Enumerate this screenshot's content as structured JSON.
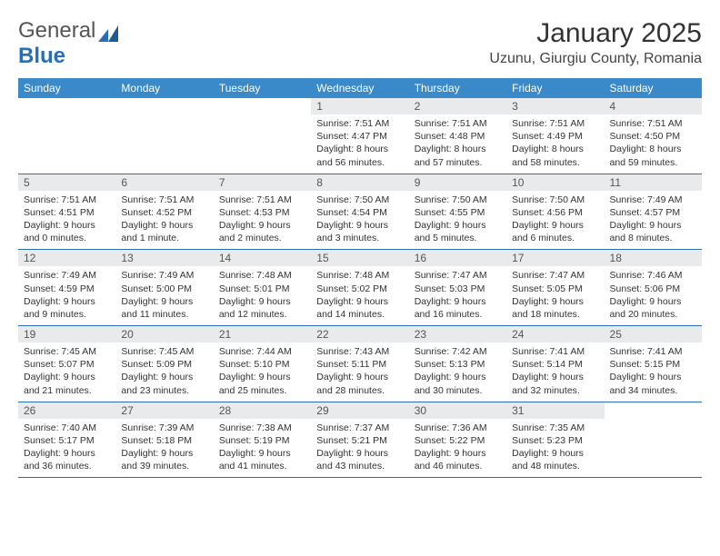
{
  "logo": {
    "text_general": "General",
    "text_blue": "Blue"
  },
  "header": {
    "month_title": "January 2025",
    "location": "Uzunu, Giurgiu County, Romania"
  },
  "colors": {
    "header_bar": "#3a89c9",
    "daynum_bg": "#e8eaec",
    "rule": "#2a6fb5",
    "text": "#333333",
    "logo_blue": "#2a6fb5"
  },
  "day_names": [
    "Sunday",
    "Monday",
    "Tuesday",
    "Wednesday",
    "Thursday",
    "Friday",
    "Saturday"
  ],
  "weeks": [
    [
      {
        "n": "",
        "lines": [
          "",
          "",
          "",
          ""
        ]
      },
      {
        "n": "",
        "lines": [
          "",
          "",
          "",
          ""
        ]
      },
      {
        "n": "",
        "lines": [
          "",
          "",
          "",
          ""
        ]
      },
      {
        "n": "1",
        "lines": [
          "Sunrise: 7:51 AM",
          "Sunset: 4:47 PM",
          "Daylight: 8 hours",
          "and 56 minutes."
        ]
      },
      {
        "n": "2",
        "lines": [
          "Sunrise: 7:51 AM",
          "Sunset: 4:48 PM",
          "Daylight: 8 hours",
          "and 57 minutes."
        ]
      },
      {
        "n": "3",
        "lines": [
          "Sunrise: 7:51 AM",
          "Sunset: 4:49 PM",
          "Daylight: 8 hours",
          "and 58 minutes."
        ]
      },
      {
        "n": "4",
        "lines": [
          "Sunrise: 7:51 AM",
          "Sunset: 4:50 PM",
          "Daylight: 8 hours",
          "and 59 minutes."
        ]
      }
    ],
    [
      {
        "n": "5",
        "lines": [
          "Sunrise: 7:51 AM",
          "Sunset: 4:51 PM",
          "Daylight: 9 hours",
          "and 0 minutes."
        ]
      },
      {
        "n": "6",
        "lines": [
          "Sunrise: 7:51 AM",
          "Sunset: 4:52 PM",
          "Daylight: 9 hours",
          "and 1 minute."
        ]
      },
      {
        "n": "7",
        "lines": [
          "Sunrise: 7:51 AM",
          "Sunset: 4:53 PM",
          "Daylight: 9 hours",
          "and 2 minutes."
        ]
      },
      {
        "n": "8",
        "lines": [
          "Sunrise: 7:50 AM",
          "Sunset: 4:54 PM",
          "Daylight: 9 hours",
          "and 3 minutes."
        ]
      },
      {
        "n": "9",
        "lines": [
          "Sunrise: 7:50 AM",
          "Sunset: 4:55 PM",
          "Daylight: 9 hours",
          "and 5 minutes."
        ]
      },
      {
        "n": "10",
        "lines": [
          "Sunrise: 7:50 AM",
          "Sunset: 4:56 PM",
          "Daylight: 9 hours",
          "and 6 minutes."
        ]
      },
      {
        "n": "11",
        "lines": [
          "Sunrise: 7:49 AM",
          "Sunset: 4:57 PM",
          "Daylight: 9 hours",
          "and 8 minutes."
        ]
      }
    ],
    [
      {
        "n": "12",
        "lines": [
          "Sunrise: 7:49 AM",
          "Sunset: 4:59 PM",
          "Daylight: 9 hours",
          "and 9 minutes."
        ]
      },
      {
        "n": "13",
        "lines": [
          "Sunrise: 7:49 AM",
          "Sunset: 5:00 PM",
          "Daylight: 9 hours",
          "and 11 minutes."
        ]
      },
      {
        "n": "14",
        "lines": [
          "Sunrise: 7:48 AM",
          "Sunset: 5:01 PM",
          "Daylight: 9 hours",
          "and 12 minutes."
        ]
      },
      {
        "n": "15",
        "lines": [
          "Sunrise: 7:48 AM",
          "Sunset: 5:02 PM",
          "Daylight: 9 hours",
          "and 14 minutes."
        ]
      },
      {
        "n": "16",
        "lines": [
          "Sunrise: 7:47 AM",
          "Sunset: 5:03 PM",
          "Daylight: 9 hours",
          "and 16 minutes."
        ]
      },
      {
        "n": "17",
        "lines": [
          "Sunrise: 7:47 AM",
          "Sunset: 5:05 PM",
          "Daylight: 9 hours",
          "and 18 minutes."
        ]
      },
      {
        "n": "18",
        "lines": [
          "Sunrise: 7:46 AM",
          "Sunset: 5:06 PM",
          "Daylight: 9 hours",
          "and 20 minutes."
        ]
      }
    ],
    [
      {
        "n": "19",
        "lines": [
          "Sunrise: 7:45 AM",
          "Sunset: 5:07 PM",
          "Daylight: 9 hours",
          "and 21 minutes."
        ]
      },
      {
        "n": "20",
        "lines": [
          "Sunrise: 7:45 AM",
          "Sunset: 5:09 PM",
          "Daylight: 9 hours",
          "and 23 minutes."
        ]
      },
      {
        "n": "21",
        "lines": [
          "Sunrise: 7:44 AM",
          "Sunset: 5:10 PM",
          "Daylight: 9 hours",
          "and 25 minutes."
        ]
      },
      {
        "n": "22",
        "lines": [
          "Sunrise: 7:43 AM",
          "Sunset: 5:11 PM",
          "Daylight: 9 hours",
          "and 28 minutes."
        ]
      },
      {
        "n": "23",
        "lines": [
          "Sunrise: 7:42 AM",
          "Sunset: 5:13 PM",
          "Daylight: 9 hours",
          "and 30 minutes."
        ]
      },
      {
        "n": "24",
        "lines": [
          "Sunrise: 7:41 AM",
          "Sunset: 5:14 PM",
          "Daylight: 9 hours",
          "and 32 minutes."
        ]
      },
      {
        "n": "25",
        "lines": [
          "Sunrise: 7:41 AM",
          "Sunset: 5:15 PM",
          "Daylight: 9 hours",
          "and 34 minutes."
        ]
      }
    ],
    [
      {
        "n": "26",
        "lines": [
          "Sunrise: 7:40 AM",
          "Sunset: 5:17 PM",
          "Daylight: 9 hours",
          "and 36 minutes."
        ]
      },
      {
        "n": "27",
        "lines": [
          "Sunrise: 7:39 AM",
          "Sunset: 5:18 PM",
          "Daylight: 9 hours",
          "and 39 minutes."
        ]
      },
      {
        "n": "28",
        "lines": [
          "Sunrise: 7:38 AM",
          "Sunset: 5:19 PM",
          "Daylight: 9 hours",
          "and 41 minutes."
        ]
      },
      {
        "n": "29",
        "lines": [
          "Sunrise: 7:37 AM",
          "Sunset: 5:21 PM",
          "Daylight: 9 hours",
          "and 43 minutes."
        ]
      },
      {
        "n": "30",
        "lines": [
          "Sunrise: 7:36 AM",
          "Sunset: 5:22 PM",
          "Daylight: 9 hours",
          "and 46 minutes."
        ]
      },
      {
        "n": "31",
        "lines": [
          "Sunrise: 7:35 AM",
          "Sunset: 5:23 PM",
          "Daylight: 9 hours",
          "and 48 minutes."
        ]
      },
      {
        "n": "",
        "lines": [
          "",
          "",
          "",
          ""
        ]
      }
    ]
  ]
}
